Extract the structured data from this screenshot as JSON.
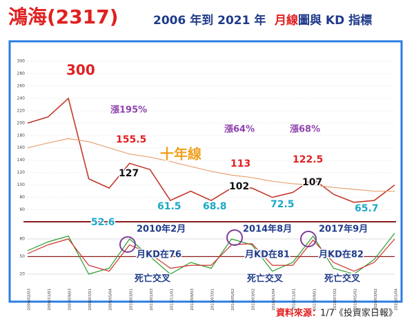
{
  "title": {
    "stock": "鴻海(2317)",
    "span": "2006 年到 2021 年",
    "period": "月線",
    "rest": "圖與 KD 指標"
  },
  "source": {
    "label": "資料來源：",
    "text": "1/7《投資家日報》"
  },
  "chart_data": {
    "type": "line",
    "categories": [
      "2006/02/03",
      "2006/11/01",
      "2007/09/03",
      "2008/07/01",
      "2009/05/04",
      "2010/03/01",
      "2011/01/03",
      "2011/11/01",
      "2012/09/03",
      "2013/07/01",
      "2014/05/02",
      "2015/03/02",
      "2016/01/04",
      "2016/11/01",
      "2017/09/01",
      "2018/07/02",
      "2019/05/02",
      "2020/03/02",
      "2021/01/04"
    ],
    "series": [
      {
        "name": "月線",
        "color": "#c0392b",
        "values": [
          200,
          210,
          240,
          110,
          95,
          135,
          125,
          75,
          90,
          75,
          95,
          95,
          80,
          88,
          110,
          85,
          72,
          75,
          100
        ]
      },
      {
        "name": "十年線",
        "color": "#e8a070",
        "values": [
          160,
          168,
          175,
          170,
          160,
          150,
          145,
          138,
          130,
          122,
          116,
          112,
          106,
          102,
          100,
          96,
          93,
          90,
          90
        ]
      },
      {
        "name": "K",
        "color": "#2a9d2a",
        "axis": "y2",
        "values": [
          60,
          75,
          85,
          20,
          30,
          80,
          50,
          20,
          40,
          30,
          80,
          70,
          25,
          40,
          85,
          30,
          20,
          45,
          90
        ]
      },
      {
        "name": "D",
        "color": "#d03030",
        "axis": "y2",
        "values": [
          55,
          70,
          80,
          35,
          25,
          70,
          55,
          30,
          35,
          35,
          70,
          72,
          35,
          35,
          78,
          40,
          25,
          40,
          80
        ]
      }
    ],
    "ylim": [
      45,
      310
    ],
    "yticks": [
      60,
      80,
      100,
      120,
      140,
      160,
      180,
      200,
      220,
      240,
      260,
      280,
      300
    ],
    "y2lim": [
      0,
      100
    ],
    "y2ticks": [
      20,
      50,
      80
    ],
    "annotations": [
      "300",
      "漲195%",
      "155.5",
      "127",
      "十年線",
      "52.6",
      "61.5",
      "68.8",
      "漲64%",
      "113",
      "102",
      "72.5",
      "漲68%",
      "122.5",
      "107",
      "65.7"
    ],
    "kd_annotations": [
      "2010年2月",
      "月KD在76",
      "死亡交叉",
      "2014年8月",
      "月KD在81",
      "死亡交叉",
      "2017年9月",
      "月KD在82",
      "死亡交叉"
    ]
  }
}
